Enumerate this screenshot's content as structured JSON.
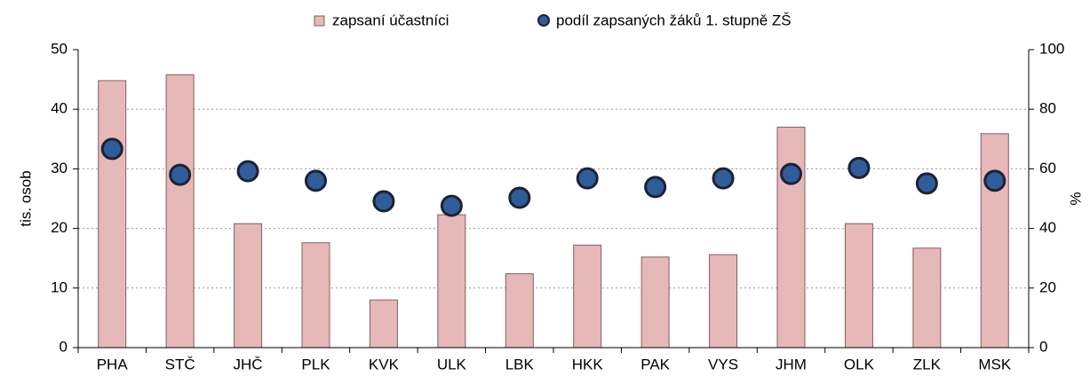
{
  "chart_data": {
    "type": "combo",
    "categories": [
      "PHA",
      "STČ",
      "JHČ",
      "PLK",
      "KVK",
      "ULK",
      "LBK",
      "HKK",
      "PAK",
      "VYS",
      "JHM",
      "OLK",
      "ZLK",
      "MSK"
    ],
    "series": [
      {
        "name": "zapsaní účastníci",
        "type": "bar",
        "color": "#e6b8b7",
        "values": [
          44.8,
          45.8,
          20.8,
          17.6,
          8.0,
          22.3,
          12.4,
          17.2,
          15.2,
          15.6,
          37.0,
          20.8,
          16.7,
          35.9
        ]
      },
      {
        "name": "podíl zapsaných žáků 1. stupně ZŠ",
        "type": "scatter",
        "axis": "y2",
        "color": "#2f5d99",
        "values": [
          66.7,
          58.0,
          59.2,
          56.0,
          49.1,
          47.6,
          50.3,
          56.8,
          53.9,
          56.8,
          58.3,
          60.3,
          55.1,
          56.0
        ]
      }
    ],
    "ylabel": "tis. osob",
    "y2label": "%",
    "ylim": [
      0,
      50
    ],
    "yticks": [
      0,
      10,
      20,
      30,
      40,
      50
    ],
    "y2lim": [
      0,
      100
    ],
    "y2ticks": [
      0,
      20,
      40,
      60,
      80,
      100
    ],
    "grid": true,
    "legend": "top"
  }
}
